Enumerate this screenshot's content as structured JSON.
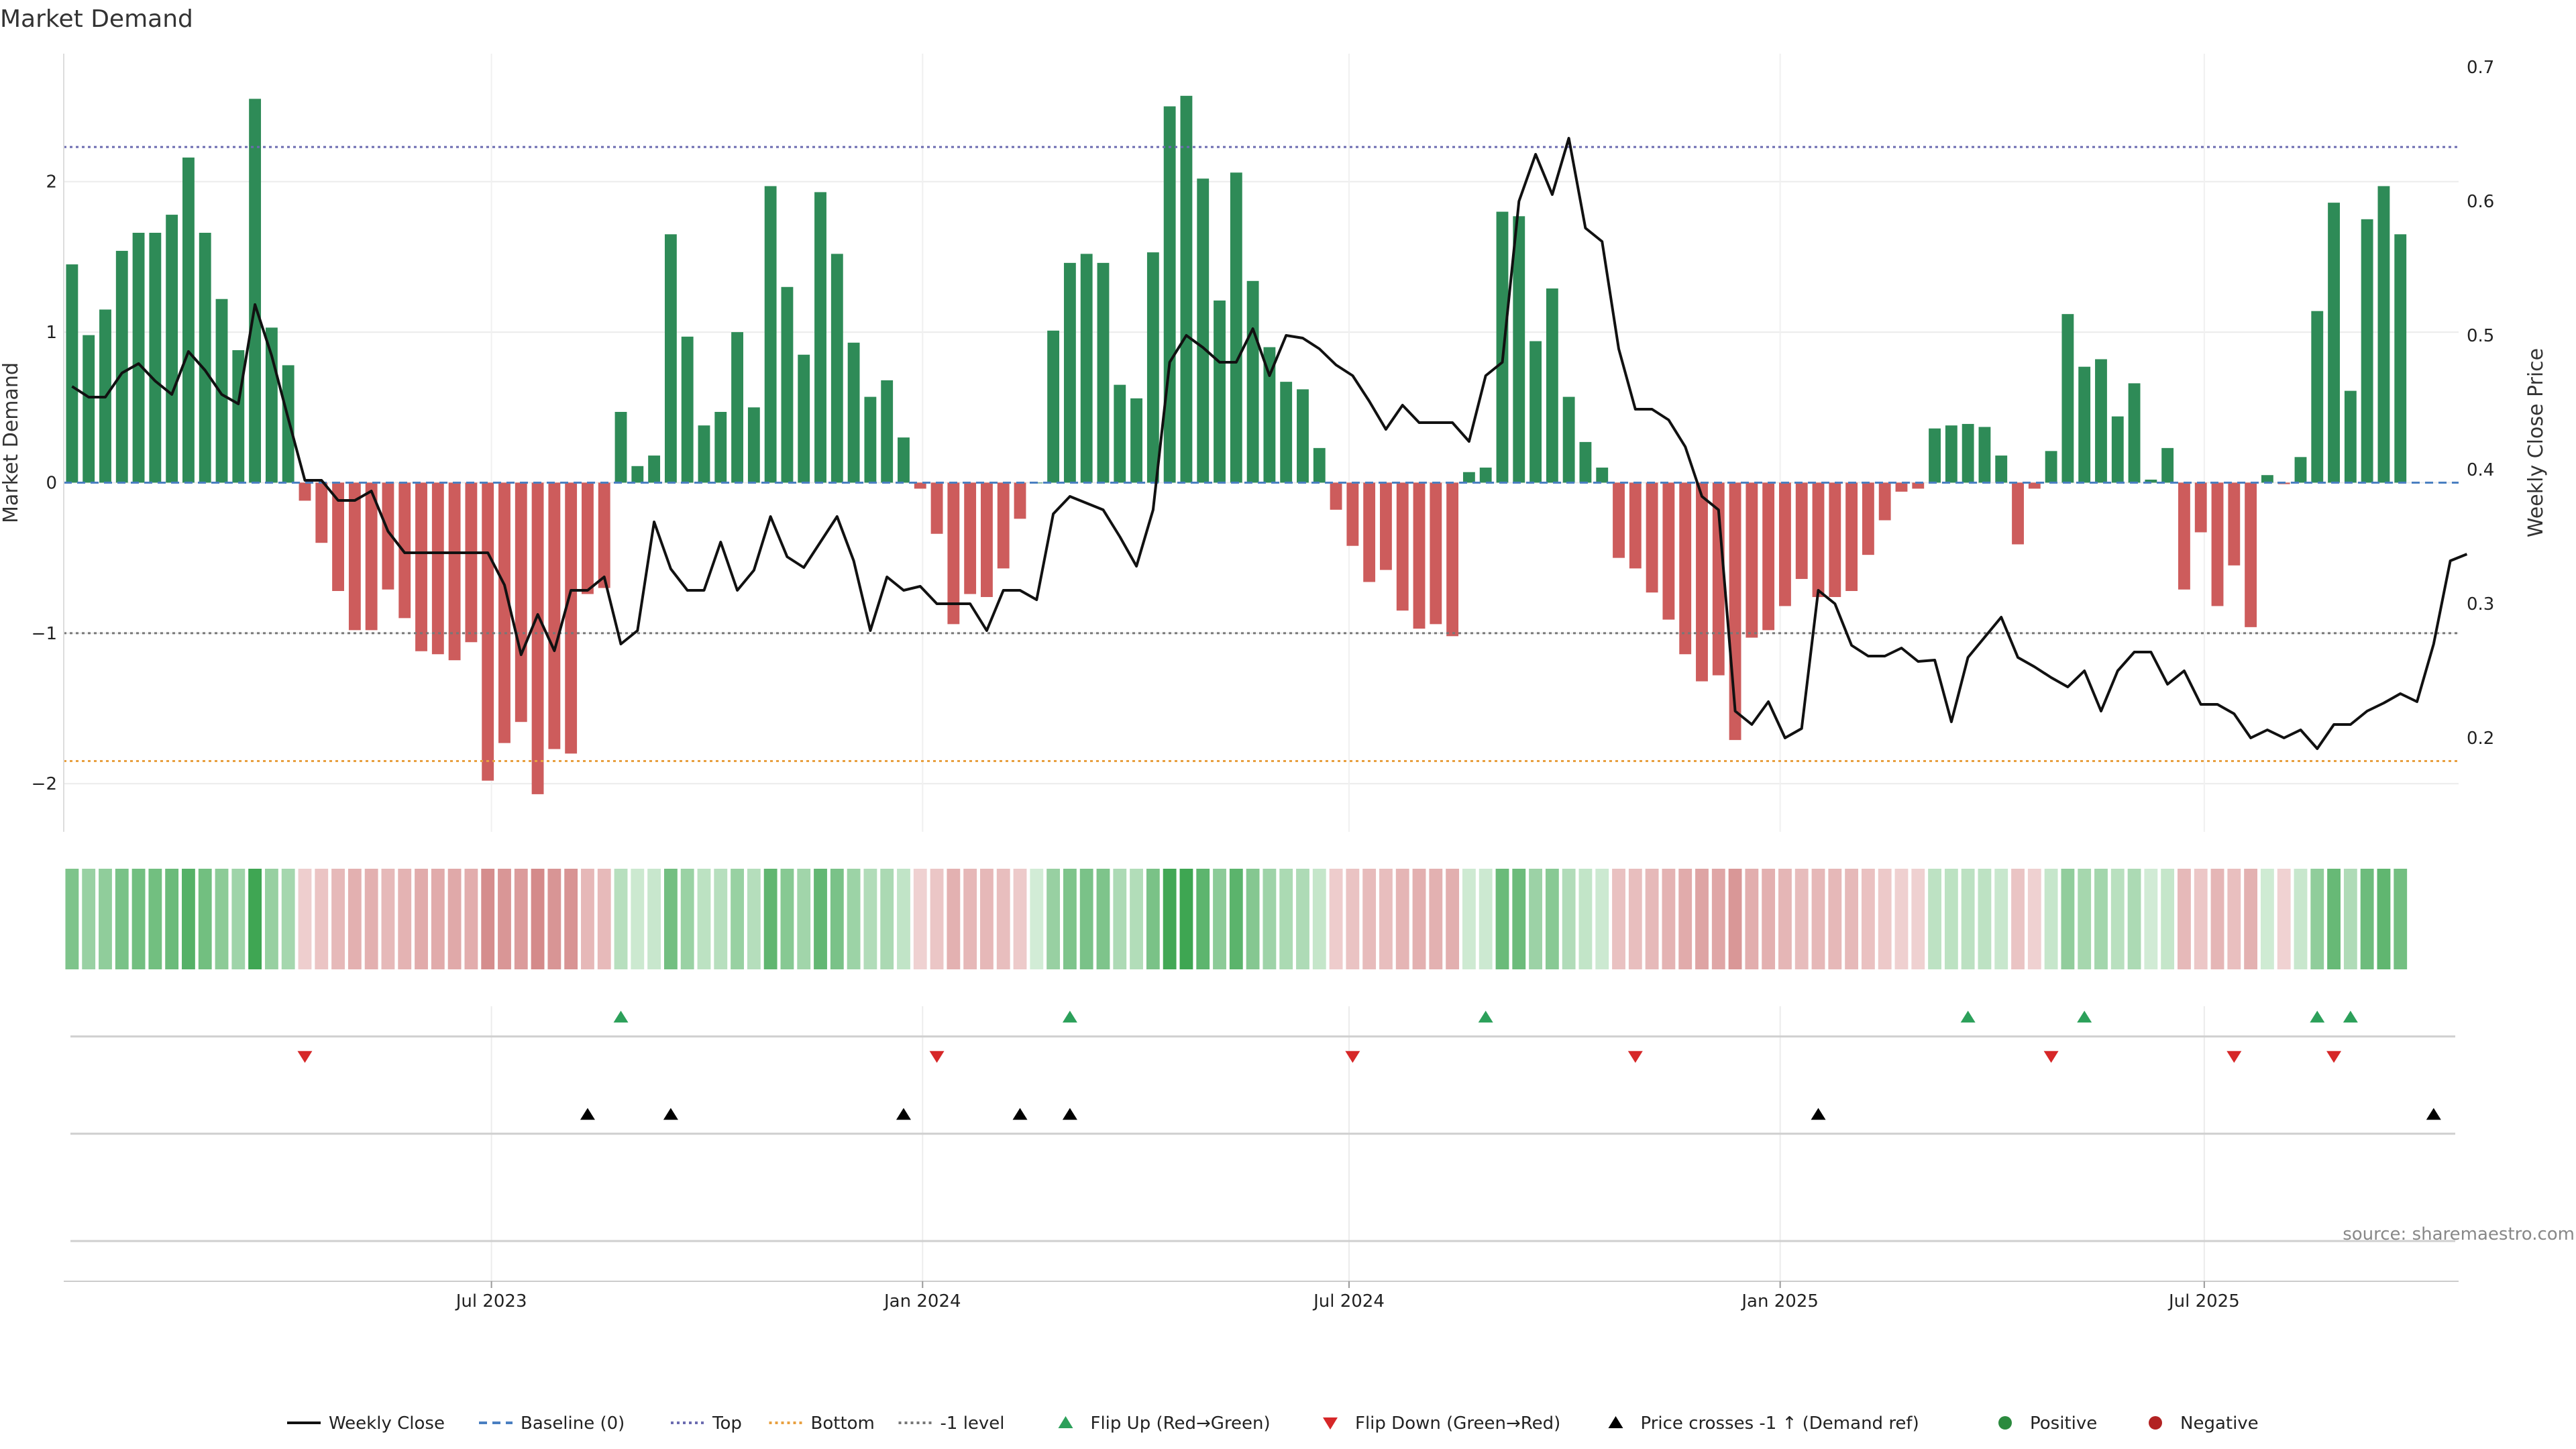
{
  "chart_data": {
    "type": "bar",
    "title": "Market Demand",
    "ylabel_left": "Market Demand",
    "ylabel_right": "Weekly Close Price",
    "y_left_ticks": [
      "−2",
      "−1",
      "0",
      "1",
      "2"
    ],
    "y_left_range": [
      -2.32,
      2.85
    ],
    "y_right_ticks": [
      "0.2",
      "0.3",
      "0.4",
      "0.5",
      "0.6",
      "0.7"
    ],
    "y_right_range": [
      0.13,
      0.71
    ],
    "x_date_range": [
      "2023-01-03",
      "2025-10-14"
    ],
    "x_ticks": [
      {
        "date": "2023-07-01",
        "label": "Jul 2023"
      },
      {
        "date": "2024-01-01",
        "label": "Jan 2024"
      },
      {
        "date": "2024-07-01",
        "label": "Jul 2024"
      },
      {
        "date": "2025-01-01",
        "label": "Jan 2025"
      },
      {
        "date": "2025-07-01",
        "label": "Jul 2025"
      }
    ],
    "reference_lines": [
      {
        "name": "Top",
        "value": 2.23,
        "color": "#6b6bb0",
        "style": "dotted"
      },
      {
        "name": "-1 level",
        "value": -1.0,
        "color": "#777777",
        "style": "dotted"
      },
      {
        "name": "Bottom",
        "value": -1.85,
        "color": "#e8a040",
        "style": "dotted"
      },
      {
        "name": "Baseline (0)",
        "value": 0,
        "color": "#4a7fc1",
        "style": "dashed"
      }
    ],
    "weeks": 144,
    "demand": [
      1.45,
      0.98,
      1.15,
      1.54,
      1.66,
      1.66,
      1.78,
      2.16,
      1.66,
      1.22,
      0.88,
      2.55,
      1.03,
      0.78,
      -0.12,
      -0.4,
      -0.72,
      -0.98,
      -0.98,
      -0.71,
      -0.9,
      -1.12,
      -1.14,
      -1.18,
      -1.06,
      -1.98,
      -1.73,
      -1.59,
      -2.07,
      -1.77,
      -1.8,
      -0.74,
      -0.7,
      0.47,
      0.11,
      0.18,
      1.65,
      0.97,
      0.38,
      0.47,
      1.0,
      0.5,
      1.97,
      1.3,
      0.85,
      1.93,
      1.52,
      0.93,
      0.57,
      0.68,
      0.3,
      -0.04,
      -0.34,
      -0.94,
      -0.74,
      -0.76,
      -0.57,
      -0.24,
      0.0,
      1.01,
      1.46,
      1.52,
      1.46,
      0.65,
      0.56,
      1.53,
      2.5,
      2.57,
      2.02,
      1.21,
      2.06,
      1.34,
      0.9,
      0.67,
      0.62,
      0.23,
      -0.18,
      -0.42,
      -0.66,
      -0.58,
      -0.85,
      -0.97,
      -0.94,
      -1.02,
      0.07,
      0.1,
      1.8,
      1.77,
      0.94,
      1.29,
      0.57,
      0.27,
      0.1,
      -0.5,
      -0.57,
      -0.73,
      -0.91,
      -1.14,
      -1.32,
      -1.28,
      -1.71,
      -1.03,
      -0.98,
      -0.82,
      -0.64,
      -0.76,
      -0.76,
      -0.72,
      -0.48,
      -0.25,
      -0.06,
      -0.04,
      0.36,
      0.38,
      0.39,
      0.37,
      0.18,
      -0.41,
      -0.04,
      0.21,
      1.12,
      0.77,
      0.82,
      0.44,
      0.66,
      0.02,
      0.23,
      -0.71,
      -0.33,
      -0.82,
      -0.55,
      -0.96,
      0.05,
      -0.01,
      0.17,
      1.14,
      1.86,
      0.61,
      1.75,
      1.97,
      1.65
    ],
    "price": [
      0.462,
      0.454,
      0.454,
      0.472,
      0.479,
      0.466,
      0.456,
      0.488,
      0.474,
      0.456,
      0.449,
      0.523,
      0.485,
      0.438,
      0.392,
      0.392,
      0.377,
      0.377,
      0.384,
      0.354,
      0.338,
      0.338,
      0.338,
      0.338,
      0.338,
      0.338,
      0.314,
      0.262,
      0.292,
      0.265,
      0.31,
      0.31,
      0.32,
      0.27,
      0.28,
      0.361,
      0.326,
      0.31,
      0.31,
      0.346,
      0.31,
      0.325,
      0.365,
      0.335,
      0.327,
      0.346,
      0.365,
      0.332,
      0.28,
      0.32,
      0.31,
      0.313,
      0.3,
      0.3,
      0.3,
      0.28,
      0.31,
      0.31,
      0.303,
      0.367,
      0.38,
      0.375,
      0.37,
      0.35,
      0.328,
      0.37,
      0.48,
      0.5,
      0.491,
      0.48,
      0.48,
      0.505,
      0.47,
      0.5,
      0.498,
      0.49,
      0.478,
      0.47,
      0.451,
      0.43,
      0.448,
      0.435,
      0.435,
      0.435,
      0.421,
      0.47,
      0.48,
      0.6,
      0.635,
      0.605,
      0.647,
      0.58,
      0.57,
      0.49,
      0.445,
      0.445,
      0.437,
      0.417,
      0.38,
      0.37,
      0.22,
      0.21,
      0.227,
      0.2,
      0.207,
      0.31,
      0.3,
      0.269,
      0.261,
      0.261,
      0.267,
      0.257,
      0.258,
      0.212,
      0.26,
      0.275,
      0.29,
      0.26,
      0.253,
      0.245,
      0.238,
      0.25,
      0.22,
      0.25,
      0.264,
      0.264,
      0.24,
      0.25,
      0.225,
      0.225,
      0.218,
      0.2,
      0.206,
      0.2,
      0.206,
      0.192,
      0.21,
      0.21,
      0.22,
      0.226,
      0.233,
      0.227,
      0.27,
      0.332,
      0.337
    ],
    "flip_up_weeks": [
      33,
      60,
      85,
      114,
      121,
      135,
      137
    ],
    "flip_down_weeks": [
      14,
      52,
      77,
      94,
      119,
      130,
      136
    ],
    "price_cross_weeks": [
      31,
      36,
      50,
      57,
      60,
      105,
      142
    ],
    "legend": [
      {
        "label": "Weekly Close",
        "kind": "line",
        "color": "#111111"
      },
      {
        "label": "Baseline (0)",
        "kind": "dash",
        "color": "#4a7fc1"
      },
      {
        "label": "Top",
        "kind": "dot",
        "color": "#6b6bb0"
      },
      {
        "label": "Bottom",
        "kind": "dot",
        "color": "#e8a040"
      },
      {
        "label": "-1 level",
        "kind": "dot",
        "color": "#777777"
      },
      {
        "label": "Flip Up (Red→Green)",
        "kind": "tri-up",
        "color": "#2ca05a"
      },
      {
        "label": "Flip Down (Green→Red)",
        "kind": "tri-down",
        "color": "#d62728"
      },
      {
        "label": "Price crosses -1 ↑ (Demand ref)",
        "kind": "tri-up",
        "color": "#000000"
      },
      {
        "label": "Positive",
        "kind": "circle",
        "color": "#2b8a3e"
      },
      {
        "label": "Negative",
        "kind": "circle",
        "color": "#b22222"
      }
    ],
    "colors": {
      "positive_bar": "#2e8b57",
      "negative_bar": "#cd5c5c",
      "price_line": "#111111"
    }
  },
  "source_note": "source: sharemaestro.com"
}
